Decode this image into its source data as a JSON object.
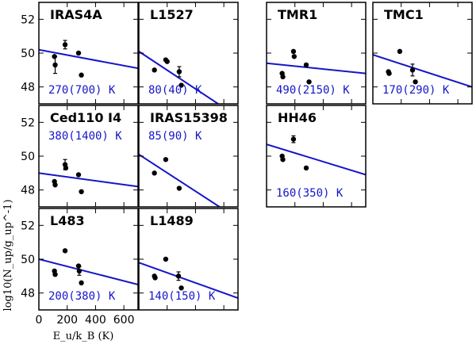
{
  "chart_data": {
    "type": "scatter",
    "xlabel": "E_u/k_B (K)",
    "ylabel": "log10(N_up/g_up^-1)",
    "xlim": [
      0,
      700
    ],
    "ylim": [
      47,
      53
    ],
    "xticks": [
      0,
      200,
      400,
      600
    ],
    "yticks": [
      48,
      50,
      52
    ],
    "panels": [
      {
        "name": "IRAS4A",
        "temp": "270(700) K",
        "points": [
          {
            "x": 110,
            "y": 49.8
          },
          {
            "x": 115,
            "y": 49.3,
            "err": 0.5
          },
          {
            "x": 185,
            "y": 50.5,
            "err": 0.25
          },
          {
            "x": 280,
            "y": 50.0
          },
          {
            "x": 300,
            "y": 48.7
          }
        ],
        "fit": [
          [
            0,
            50.2
          ],
          [
            700,
            49.1
          ]
        ]
      },
      {
        "name": "L1527",
        "temp": "80(40) K",
        "points": [
          {
            "x": 110,
            "y": 49.0
          },
          {
            "x": 190,
            "y": 49.6
          },
          {
            "x": 200,
            "y": 49.5
          },
          {
            "x": 285,
            "y": 48.9,
            "err": 0.3
          },
          {
            "x": 300,
            "y": 48.1
          }
        ],
        "fit": [
          [
            0,
            50.1
          ],
          [
            560,
            47.0
          ]
        ]
      },
      {
        "name": "TMR1",
        "temp": "490(2150) K",
        "points": [
          {
            "x": 110,
            "y": 48.8
          },
          {
            "x": 115,
            "y": 48.6
          },
          {
            "x": 190,
            "y": 50.1
          },
          {
            "x": 195,
            "y": 49.8
          },
          {
            "x": 280,
            "y": 49.3
          },
          {
            "x": 300,
            "y": 48.3
          }
        ],
        "fit": [
          [
            0,
            49.4
          ],
          [
            700,
            48.8
          ]
        ]
      },
      {
        "name": "TMC1",
        "temp": "170(290) K",
        "points": [
          {
            "x": 110,
            "y": 48.9
          },
          {
            "x": 115,
            "y": 48.8
          },
          {
            "x": 190,
            "y": 50.1
          },
          {
            "x": 280,
            "y": 49.0,
            "err": 0.35
          },
          {
            "x": 300,
            "y": 48.3
          }
        ],
        "fit": [
          [
            0,
            49.9
          ],
          [
            700,
            48.0
          ]
        ]
      },
      {
        "name": "Ced110 I4",
        "temp": "380(1400) K",
        "points": [
          {
            "x": 110,
            "y": 48.5
          },
          {
            "x": 115,
            "y": 48.3
          },
          {
            "x": 185,
            "y": 49.5,
            "err": 0.3
          },
          {
            "x": 190,
            "y": 49.3
          },
          {
            "x": 280,
            "y": 48.9
          },
          {
            "x": 300,
            "y": 47.9
          }
        ],
        "fit": [
          [
            0,
            49.0
          ],
          [
            700,
            48.2
          ]
        ]
      },
      {
        "name": "IRAS15398",
        "temp": "85(90) K",
        "points": [
          {
            "x": 110,
            "y": 49.0
          },
          {
            "x": 190,
            "y": 49.8
          },
          {
            "x": 285,
            "y": 48.1
          }
        ],
        "fit": [
          [
            0,
            50.1
          ],
          [
            570,
            47.0
          ]
        ]
      },
      {
        "name": "HH46",
        "temp": "160(350) K",
        "points": [
          {
            "x": 110,
            "y": 50.0
          },
          {
            "x": 115,
            "y": 49.8
          },
          {
            "x": 190,
            "y": 51.0,
            "err": 0.2
          },
          {
            "x": 280,
            "y": 49.3
          }
        ],
        "fit": [
          [
            0,
            50.7
          ],
          [
            700,
            48.9
          ]
        ]
      },
      {
        "name": "L483",
        "temp": "200(380) K",
        "points": [
          {
            "x": 110,
            "y": 49.3
          },
          {
            "x": 115,
            "y": 49.1
          },
          {
            "x": 185,
            "y": 50.5
          },
          {
            "x": 280,
            "y": 49.6
          },
          {
            "x": 285,
            "y": 49.3,
            "err": 0.25
          },
          {
            "x": 300,
            "y": 48.6
          }
        ],
        "fit": [
          [
            0,
            50.0
          ],
          [
            700,
            48.5
          ]
        ]
      },
      {
        "name": "L1489",
        "temp": "140(150) K",
        "points": [
          {
            "x": 110,
            "y": 49.0
          },
          {
            "x": 115,
            "y": 48.9
          },
          {
            "x": 190,
            "y": 50.0
          },
          {
            "x": 280,
            "y": 49.0,
            "err": 0.25
          },
          {
            "x": 300,
            "y": 48.3
          }
        ],
        "fit": [
          [
            0,
            49.8
          ],
          [
            700,
            47.7
          ]
        ]
      }
    ]
  }
}
